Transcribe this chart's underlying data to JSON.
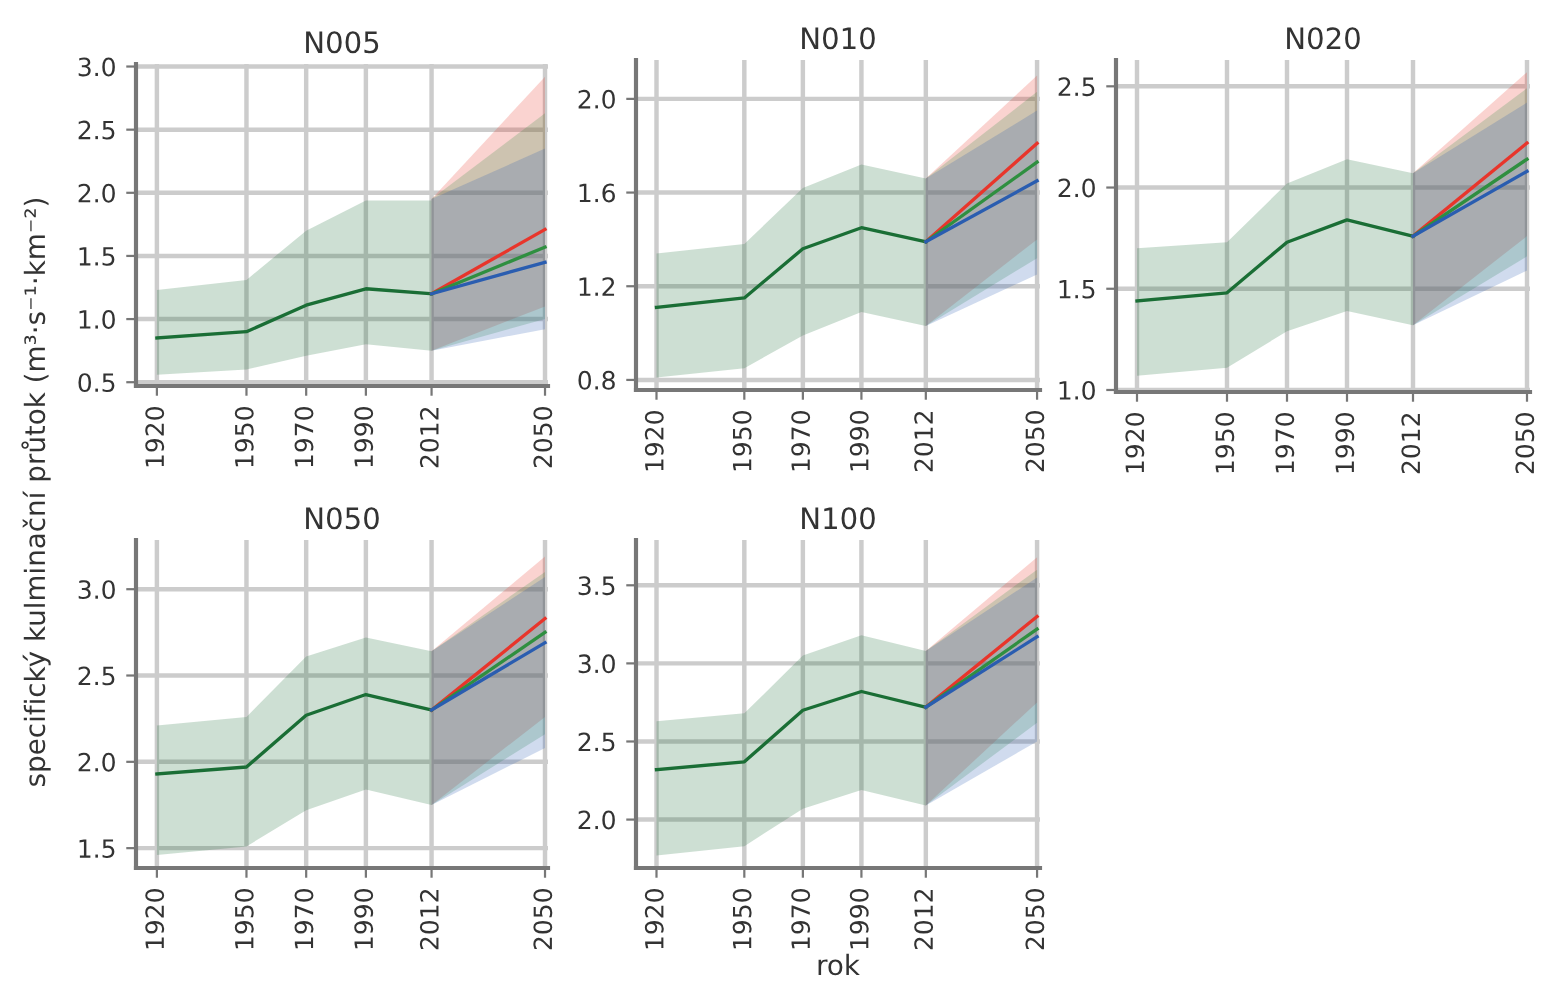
{
  "chart_data": [
    {
      "type": "line",
      "title": "N005",
      "ylabel": "specifický kulminační průtok (m³·s⁻¹·km⁻²)",
      "xlim": [
        1913,
        2051
      ],
      "xticks": [
        1920,
        1950,
        1970,
        1990,
        2012,
        2050
      ],
      "ylim": [
        0.47,
        3.02
      ],
      "yticks": [
        0.5,
        {
          "value": 1,
          "label": "1.0"
        },
        1.5,
        {
          "value": 2,
          "label": "2.0"
        },
        2.5,
        {
          "value": 3,
          "label": "3.0"
        }
      ],
      "grid": true,
      "series": [
        {
          "color": "#1a6e35",
          "x": [
            1920,
            1950,
            1970,
            1990,
            2012
          ],
          "values": [
            0.85,
            0.9,
            1.11,
            1.24,
            1.2
          ],
          "lower": [
            0.56,
            0.6,
            0.71,
            0.8,
            0.75
          ],
          "upper": [
            1.23,
            1.31,
            1.7,
            1.94,
            1.94
          ]
        },
        {
          "color": "#e8352b",
          "x": [
            2012,
            2050
          ],
          "values": [
            1.2,
            1.71
          ],
          "lower": [
            0.75,
            1.1
          ],
          "upper": [
            1.95,
            2.92
          ]
        },
        {
          "color": "#2f8f40",
          "x": [
            2012,
            2050
          ],
          "values": [
            1.2,
            1.57
          ],
          "lower": [
            0.75,
            1.0
          ],
          "upper": [
            1.95,
            2.63
          ]
        },
        {
          "color": "#2a5db0",
          "x": [
            2012,
            2050
          ],
          "values": [
            1.2,
            1.45
          ],
          "lower": [
            0.75,
            0.92
          ],
          "upper": [
            1.95,
            2.35
          ]
        }
      ]
    },
    {
      "type": "line",
      "title": "N010",
      "xlim": [
        1913,
        2051
      ],
      "xticks": [
        1920,
        1950,
        1970,
        1990,
        2012,
        2050
      ],
      "ylim": [
        0.757,
        2.166
      ],
      "yticks": [
        0.8,
        1.2,
        1.6,
        {
          "value": 2,
          "label": "2.0"
        }
      ],
      "grid": true,
      "series": [
        {
          "color": "#1a6e35",
          "x": [
            1920,
            1950,
            1970,
            1990,
            2012
          ],
          "values": [
            1.11,
            1.15,
            1.36,
            1.45,
            1.39
          ],
          "lower": [
            0.81,
            0.85,
            0.99,
            1.09,
            1.03
          ],
          "upper": [
            1.34,
            1.38,
            1.62,
            1.72,
            1.66
          ]
        },
        {
          "color": "#e8352b",
          "x": [
            2012,
            2050
          ],
          "values": [
            1.39,
            1.81
          ],
          "lower": [
            1.03,
            1.4
          ],
          "upper": [
            1.66,
            2.1
          ]
        },
        {
          "color": "#2f8f40",
          "x": [
            2012,
            2050
          ],
          "values": [
            1.39,
            1.73
          ],
          "lower": [
            1.03,
            1.32
          ],
          "upper": [
            1.66,
            2.03
          ]
        },
        {
          "color": "#2a5db0",
          "x": [
            2012,
            2050
          ],
          "values": [
            1.39,
            1.65
          ],
          "lower": [
            1.03,
            1.25
          ],
          "upper": [
            1.66,
            1.95
          ]
        }
      ]
    },
    {
      "type": "line",
      "title": "N020",
      "xlim": [
        1913,
        2051
      ],
      "xticks": [
        1920,
        1950,
        1970,
        1990,
        2012,
        2050
      ],
      "ylim": [
        0.99,
        2.63
      ],
      "yticks": [
        {
          "value": 1,
          "label": "1.0"
        },
        1.5,
        {
          "value": 2,
          "label": "2.0"
        },
        2.5
      ],
      "grid": true,
      "series": [
        {
          "color": "#1a6e35",
          "x": [
            1920,
            1950,
            1970,
            1990,
            2012
          ],
          "values": [
            1.44,
            1.48,
            1.73,
            1.84,
            1.76
          ],
          "lower": [
            1.07,
            1.11,
            1.29,
            1.39,
            1.32
          ],
          "upper": [
            1.7,
            1.73,
            2.02,
            2.14,
            2.07
          ]
        },
        {
          "color": "#e8352b",
          "x": [
            2012,
            2050
          ],
          "values": [
            1.76,
            2.22
          ],
          "lower": [
            1.32,
            1.76
          ],
          "upper": [
            2.07,
            2.57
          ]
        },
        {
          "color": "#2f8f40",
          "x": [
            2012,
            2050
          ],
          "values": [
            1.76,
            2.14
          ],
          "lower": [
            1.32,
            1.66
          ],
          "upper": [
            2.07,
            2.49
          ]
        },
        {
          "color": "#2a5db0",
          "x": [
            2012,
            2050
          ],
          "values": [
            1.76,
            2.08
          ],
          "lower": [
            1.32,
            1.59
          ],
          "upper": [
            2.07,
            2.42
          ]
        }
      ]
    },
    {
      "type": "line",
      "title": "N050",
      "xlim": [
        1913,
        2051
      ],
      "xticks": [
        1920,
        1950,
        1970,
        1990,
        2012,
        2050
      ],
      "ylim": [
        1.385,
        3.285
      ],
      "yticks": [
        1.5,
        {
          "value": 2,
          "label": "2.0"
        },
        2.5,
        {
          "value": 3,
          "label": "3.0"
        }
      ],
      "grid": true,
      "series": [
        {
          "color": "#1a6e35",
          "x": [
            1920,
            1950,
            1970,
            1990,
            2012
          ],
          "values": [
            1.93,
            1.97,
            2.27,
            2.39,
            2.3
          ],
          "lower": [
            1.46,
            1.51,
            1.72,
            1.84,
            1.75
          ],
          "upper": [
            2.21,
            2.26,
            2.61,
            2.72,
            2.64
          ]
        },
        {
          "color": "#e8352b",
          "x": [
            2012,
            2050
          ],
          "values": [
            2.3,
            2.83
          ],
          "lower": [
            1.75,
            2.26
          ],
          "upper": [
            2.64,
            3.19
          ]
        },
        {
          "color": "#2f8f40",
          "x": [
            2012,
            2050
          ],
          "values": [
            2.3,
            2.75
          ],
          "lower": [
            1.75,
            2.16
          ],
          "upper": [
            2.64,
            3.1
          ]
        },
        {
          "color": "#2a5db0",
          "x": [
            2012,
            2050
          ],
          "values": [
            2.3,
            2.69
          ],
          "lower": [
            1.75,
            2.08
          ],
          "upper": [
            2.64,
            3.07
          ]
        }
      ]
    },
    {
      "type": "line",
      "title": "N100",
      "xlabel": "rok",
      "xlim": [
        1913,
        2051
      ],
      "xticks": [
        1920,
        1950,
        1970,
        1990,
        2012,
        2050
      ],
      "ylim": [
        1.69,
        3.79
      ],
      "yticks": [
        {
          "value": 2,
          "label": "2.0"
        },
        2.5,
        {
          "value": 3,
          "label": "3.0"
        },
        3.5
      ],
      "grid": true,
      "series": [
        {
          "color": "#1a6e35",
          "x": [
            1920,
            1950,
            1970,
            1990,
            2012
          ],
          "values": [
            2.32,
            2.37,
            2.7,
            2.82,
            2.72
          ],
          "lower": [
            1.77,
            1.83,
            2.07,
            2.19,
            2.09
          ],
          "upper": [
            2.63,
            2.68,
            3.05,
            3.18,
            3.08
          ]
        },
        {
          "color": "#e8352b",
          "x": [
            2012,
            2050
          ],
          "values": [
            2.72,
            3.3
          ],
          "lower": [
            2.09,
            2.75
          ],
          "upper": [
            3.08,
            3.68
          ]
        },
        {
          "color": "#2f8f40",
          "x": [
            2012,
            2050
          ],
          "values": [
            2.72,
            3.22
          ],
          "lower": [
            2.09,
            2.62
          ],
          "upper": [
            3.08,
            3.6
          ]
        },
        {
          "color": "#2a5db0",
          "x": [
            2012,
            2050
          ],
          "values": [
            2.72,
            3.17
          ],
          "lower": [
            2.09,
            2.5
          ],
          "upper": [
            3.08,
            3.55
          ]
        }
      ]
    }
  ]
}
